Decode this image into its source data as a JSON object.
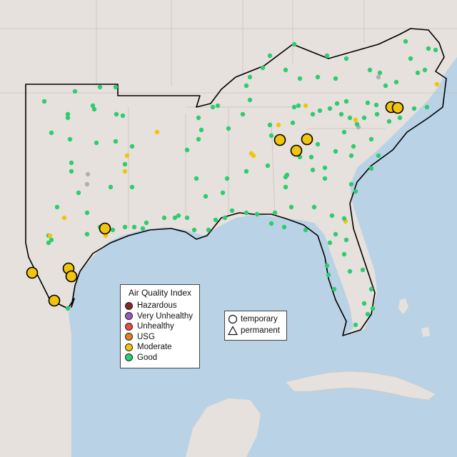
{
  "legend": {
    "title": "Air Quality Index",
    "items": [
      {
        "label": "Hazardous",
        "color": "#7e2a2a"
      },
      {
        "label": "Very Unhealthy",
        "color": "#9b59b6"
      },
      {
        "label": "Unhealthy",
        "color": "#e74c3c"
      },
      {
        "label": "USG",
        "color": "#e67e22"
      },
      {
        "label": "Moderate",
        "color": "#f1c40f"
      },
      {
        "label": "Good",
        "color": "#2ecc71"
      }
    ]
  },
  "monitor_types": {
    "temporary_label": "temporary",
    "permanent_label": "permanent"
  },
  "colors": {
    "land": "#e6e1dc",
    "water": "#b9d2e5",
    "region_outline": "#000000",
    "good": "#2ecc71",
    "moderate": "#f1c40f",
    "no_data": "#b0b0b0"
  }
}
